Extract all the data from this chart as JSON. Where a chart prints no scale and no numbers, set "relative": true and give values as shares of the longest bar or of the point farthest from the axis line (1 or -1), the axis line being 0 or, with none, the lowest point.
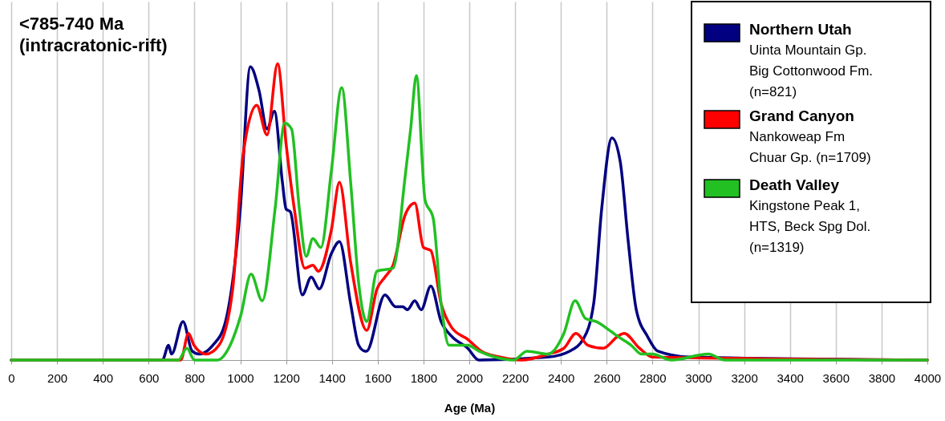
{
  "chart_data": {
    "type": "line",
    "title": "<785-740 Ma\n(intracratonic-rift)",
    "xlabel": "Age (Ma)",
    "relative": true,
    "xlim": [
      0,
      4000
    ],
    "xticks": [
      0,
      200,
      400,
      600,
      800,
      1000,
      1200,
      1400,
      1600,
      1800,
      2000,
      2200,
      2400,
      2600,
      2800,
      3000,
      3200,
      3400,
      3600,
      3800,
      4000
    ],
    "grid": "x",
    "legend": "top right",
    "line_style": "solid",
    "marker": "none",
    "annotations": [
      "Uinta Mountain Gp.\nBig Cottonwood Fm.\n(n=821)",
      "Nankoweap Fm\nChuar Gp. (n=1709)",
      "Kingstone Peak 1,\nHTS, Beck Spg Dol.\n(n=1319)"
    ],
    "series": [
      {
        "name": "Northern Utah",
        "color": "#000080",
        "x": [
          0,
          660,
          687,
          700,
          750,
          790,
          820,
          880,
          932,
          1000,
          1044,
          1082,
          1117,
          1149,
          1184,
          1200,
          1219,
          1271,
          1310,
          1345,
          1398,
          1433,
          1482,
          1517,
          1545,
          1551,
          1632,
          1678,
          1709,
          1730,
          1762,
          1790,
          1832,
          1877,
          1923,
          1993,
          2042,
          2343,
          2438,
          2497,
          2543,
          2578,
          2623,
          2659,
          2694,
          2729,
          2778,
          2823,
          2963,
          4000
        ],
        "values": [
          0,
          0,
          0.05,
          0.02,
          0.13,
          0.03,
          0.02,
          0.05,
          0.12,
          0.51,
          0.99,
          0.91,
          0.78,
          0.84,
          0.6,
          0.51,
          0.5,
          0.22,
          0.28,
          0.24,
          0.36,
          0.4,
          0.19,
          0.05,
          0.03,
          0.03,
          0.22,
          0.18,
          0.18,
          0.17,
          0.2,
          0.17,
          0.25,
          0.13,
          0.08,
          0.04,
          0,
          0.01,
          0.03,
          0.07,
          0.19,
          0.51,
          0.75,
          0.67,
          0.4,
          0.17,
          0.08,
          0.03,
          0.01,
          0
        ]
      },
      {
        "name": "Grand Canyon",
        "color": "#ff0000",
        "x": [
          0,
          740,
          774,
          798,
          850,
          907,
          967,
          1012,
          1072,
          1117,
          1163,
          1200,
          1236,
          1282,
          1317,
          1341,
          1398,
          1433,
          1482,
          1552,
          1597,
          1632,
          1667,
          1720,
          1762,
          1800,
          1832,
          1877,
          1923,
          1993,
          2053,
          2133,
          2228,
          2343,
          2413,
          2466,
          2518,
          2585,
          2648,
          2676,
          2743,
          2800,
          4000
        ],
        "values": [
          0,
          0,
          0.09,
          0.05,
          0.02,
          0.05,
          0.24,
          0.69,
          0.86,
          0.76,
          1,
          0.73,
          0.51,
          0.31,
          0.32,
          0.3,
          0.44,
          0.6,
          0.33,
          0.1,
          0.24,
          0.28,
          0.32,
          0.49,
          0.53,
          0.38,
          0.37,
          0.19,
          0.11,
          0.07,
          0.03,
          0.01,
          0,
          0.02,
          0.04,
          0.09,
          0.05,
          0.04,
          0.08,
          0.09,
          0.04,
          0.01,
          0
        ]
      },
      {
        "name": "Death Valley",
        "color": "#22c022",
        "x": [
          0,
          730,
          767,
          800,
          900,
          956,
          1002,
          1047,
          1096,
          1152,
          1194,
          1224,
          1258,
          1288,
          1317,
          1352,
          1398,
          1443,
          1482,
          1517,
          1552,
          1597,
          1667,
          1720,
          1744,
          1769,
          1807,
          1842,
          1877,
          1912,
          1993,
          2042,
          2112,
          2193,
          2252,
          2343,
          2413,
          2462,
          2508,
          2553,
          2613,
          2648,
          2707,
          2753,
          2800,
          2883,
          3044,
          3115,
          4000
        ],
        "values": [
          0,
          0,
          0.04,
          0,
          0,
          0.05,
          0.15,
          0.29,
          0.2,
          0.51,
          0.8,
          0.78,
          0.51,
          0.35,
          0.41,
          0.38,
          0.64,
          0.92,
          0.6,
          0.26,
          0.13,
          0.3,
          0.31,
          0.62,
          0.78,
          0.96,
          0.54,
          0.48,
          0.19,
          0.05,
          0.05,
          0.03,
          0.01,
          0,
          0.03,
          0.02,
          0.09,
          0.2,
          0.14,
          0.13,
          0.1,
          0.08,
          0.05,
          0.02,
          0.02,
          0,
          0.02,
          0,
          0
        ]
      }
    ]
  }
}
